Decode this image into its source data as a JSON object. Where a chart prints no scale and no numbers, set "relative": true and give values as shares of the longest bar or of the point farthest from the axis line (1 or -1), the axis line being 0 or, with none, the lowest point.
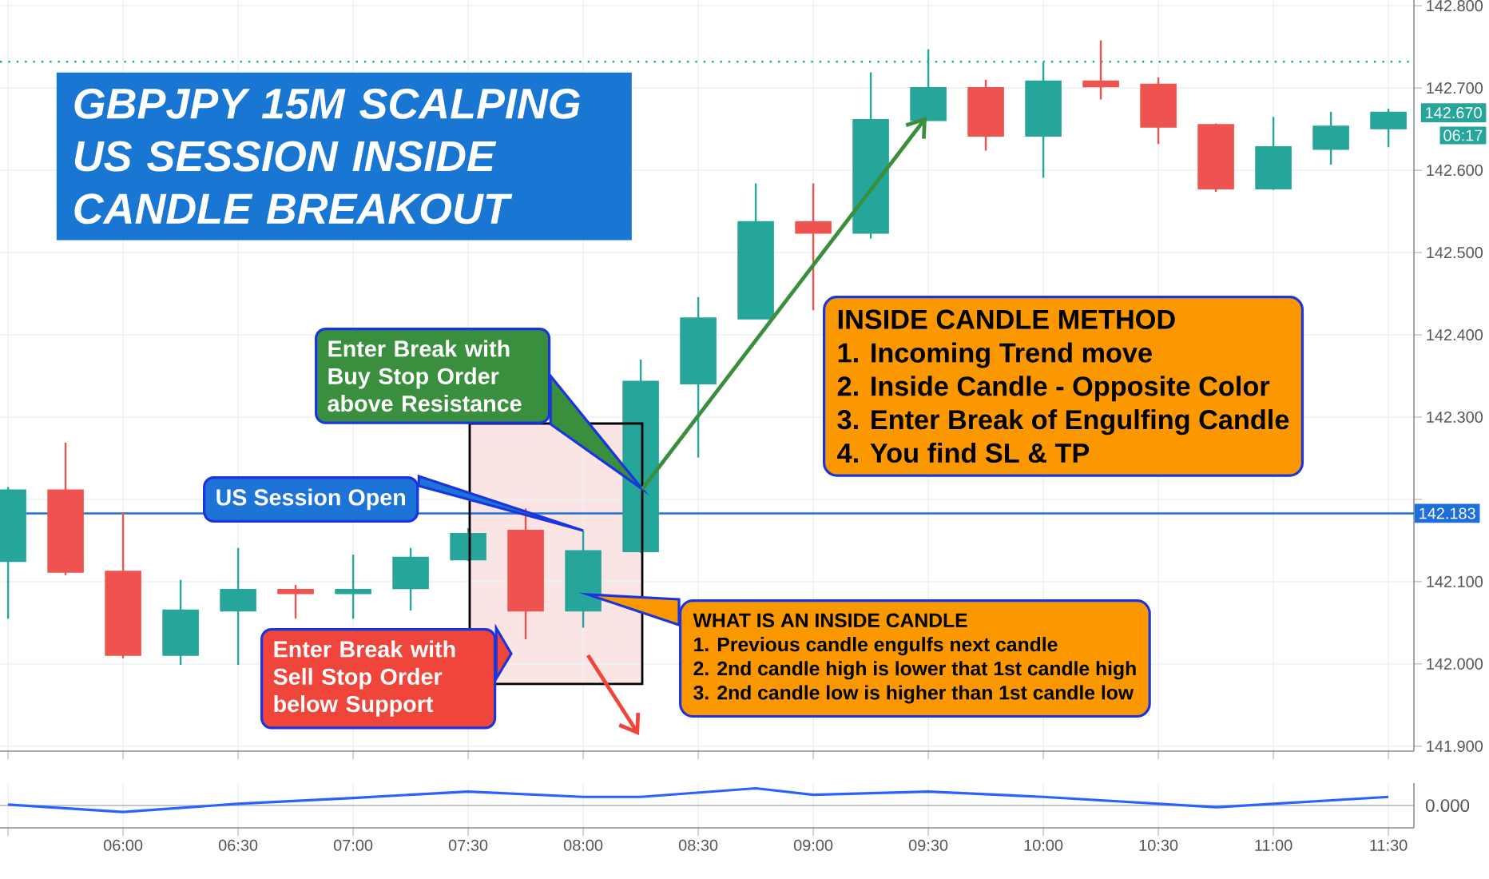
{
  "chart_data": [
    {
      "type": "candlestick",
      "title": "GBPJPY 15M SCALPING US SESSION INSIDE CANDLE BREAKOUT",
      "x": [
        5.5,
        5.75,
        6.0,
        6.25,
        6.5,
        6.75,
        7.0,
        7.25,
        7.5,
        7.75,
        8.0,
        8.25,
        8.5,
        8.75,
        9.0,
        9.25,
        9.5,
        9.75,
        10.0,
        10.25,
        10.5,
        10.75,
        11.0,
        11.25,
        11.5
      ],
      "ohlc": [
        [
          142.125,
          142.215,
          142.055,
          142.211
        ],
        [
          142.211,
          142.269,
          142.108,
          142.112
        ],
        [
          142.112,
          142.184,
          142.007,
          142.011
        ],
        [
          142.011,
          142.102,
          141.999,
          142.065
        ],
        [
          142.065,
          142.141,
          141.999,
          142.09
        ],
        [
          142.09,
          142.096,
          142.055,
          142.086
        ],
        [
          142.086,
          142.133,
          142.055,
          142.09
        ],
        [
          142.092,
          142.141,
          142.065,
          142.129
        ],
        [
          142.127,
          142.165,
          142.125,
          142.158
        ],
        [
          142.162,
          142.189,
          142.03,
          142.065
        ],
        [
          142.065,
          142.162,
          142.044,
          142.137
        ],
        [
          142.137,
          142.37,
          142.135,
          142.343
        ],
        [
          142.341,
          142.446,
          142.251,
          142.42
        ],
        [
          142.42,
          142.584,
          142.42,
          142.537
        ],
        [
          142.537,
          142.584,
          142.43,
          142.524
        ],
        [
          142.524,
          142.719,
          142.517,
          142.661
        ],
        [
          142.661,
          142.747,
          142.661,
          142.7
        ],
        [
          142.7,
          142.71,
          142.624,
          142.642
        ],
        [
          142.642,
          142.731,
          142.591,
          142.708
        ],
        [
          142.708,
          142.758,
          142.686,
          142.702
        ],
        [
          142.704,
          142.713,
          142.632,
          142.653
        ],
        [
          142.655,
          142.657,
          142.574,
          142.578
        ],
        [
          142.578,
          142.665,
          142.576,
          142.628
        ],
        [
          142.626,
          142.671,
          142.607,
          142.653
        ],
        [
          142.651,
          142.675,
          142.628,
          142.67
        ]
      ],
      "colors": [
        "#26a69a",
        "#ef5350",
        "#ef5350",
        "#26a69a",
        "#26a69a",
        "#ef5350",
        "#26a69a",
        "#26a69a",
        "#26a69a",
        "#ef5350",
        "#26a69a",
        "#26a69a",
        "#26a69a",
        "#26a69a",
        "#ef5350",
        "#26a69a",
        "#26a69a",
        "#ef5350",
        "#26a69a",
        "#ef5350",
        "#ef5350",
        "#ef5350",
        "#26a69a",
        "#26a69a",
        "#26a69a"
      ],
      "xlim": [
        5.465,
        11.611
      ],
      "ylim": [
        141.894,
        142.807
      ],
      "xticks": [
        5.5,
        6.0,
        6.5,
        7.0,
        7.5,
        8.0,
        8.5,
        9.0,
        9.5,
        10.0,
        10.5,
        11.0,
        11.5
      ],
      "yticks": [
        {
          "value": 141.9,
          "label": "141.900"
        },
        {
          "value": 142.0,
          "label": "142.000"
        },
        {
          "value": 142.1,
          "label": "142.100"
        },
        {
          "value": 142.2,
          "label": null
        },
        {
          "value": 142.3,
          "label": "142.300"
        },
        {
          "value": 142.4,
          "label": "142.400"
        },
        {
          "value": 142.5,
          "label": "142.500"
        },
        {
          "value": 142.6,
          "label": "142.600"
        },
        {
          "value": 142.7,
          "label": "142.700"
        },
        {
          "value": 142.8,
          "label": "142.800"
        }
      ],
      "tick_labels": "y",
      "grid": true,
      "ref_lines": [
        {
          "axis": "y",
          "value": 142.183,
          "label": "142.183",
          "color": "#1e6fd9"
        },
        {
          "axis": "y",
          "value": 142.732,
          "color": "#26a69a",
          "line_style": "dotted"
        }
      ],
      "annotations": [
        "Enter Break with Buy Stop Order above Resistance",
        {
          "text": "US Session Open",
          "x": 8.0,
          "y": 142.162
        },
        "Enter Break with Sell Stop Order below Support",
        "INSIDE CANDLE METHOD",
        "1. Incoming Trend move",
        "2. Inside Candle - Opposite Color",
        "3. Enter Break of Engulfing Candle",
        "4. You find SL & TP",
        "WHAT IS AN INSIDE CANDLE",
        "1. Previous candle engulfs next candle",
        "2. 2nd candle high is lower that 1st candle high",
        "3. 2nd candle low is higher than 1st candle low",
        {
          "text": "142.670",
          "x": 11.5,
          "y": 142.67
        },
        "06:17"
      ]
    },
    {
      "type": "line",
      "x": [
        5.5,
        6.0,
        6.5,
        7.0,
        7.5,
        8.0,
        8.25,
        8.75,
        9.0,
        9.5,
        10.0,
        10.75,
        11.5
      ],
      "values": [
        0.05,
        -0.38,
        0.1,
        0.44,
        0.81,
        0.5,
        0.5,
        1,
        0.62,
        0.81,
        0.5,
        -0.1,
        0.5
      ],
      "color": "#2962ff",
      "relative": true,
      "xlim": [
        5.465,
        11.611
      ],
      "xticks": [
        {
          "value": 5.5,
          "label": null
        },
        {
          "value": 6.0,
          "label": "06:00"
        },
        {
          "value": 6.5,
          "label": "06:30"
        },
        {
          "value": 7.0,
          "label": "07:00"
        },
        {
          "value": 7.5,
          "label": "07:30"
        },
        {
          "value": 8.0,
          "label": "08:00"
        },
        {
          "value": 8.5,
          "label": "08:30"
        },
        {
          "value": 9.0,
          "label": "09:00"
        },
        {
          "value": 9.5,
          "label": "09:30"
        },
        {
          "value": 10.0,
          "label": "10:00"
        },
        {
          "value": 10.5,
          "label": "10:30"
        },
        {
          "value": 11.0,
          "label": "11:00"
        },
        {
          "value": 11.5,
          "label": "11:30"
        }
      ],
      "tick_labels": "x",
      "grid": "x",
      "annotations": [
        "0.000"
      ]
    }
  ]
}
